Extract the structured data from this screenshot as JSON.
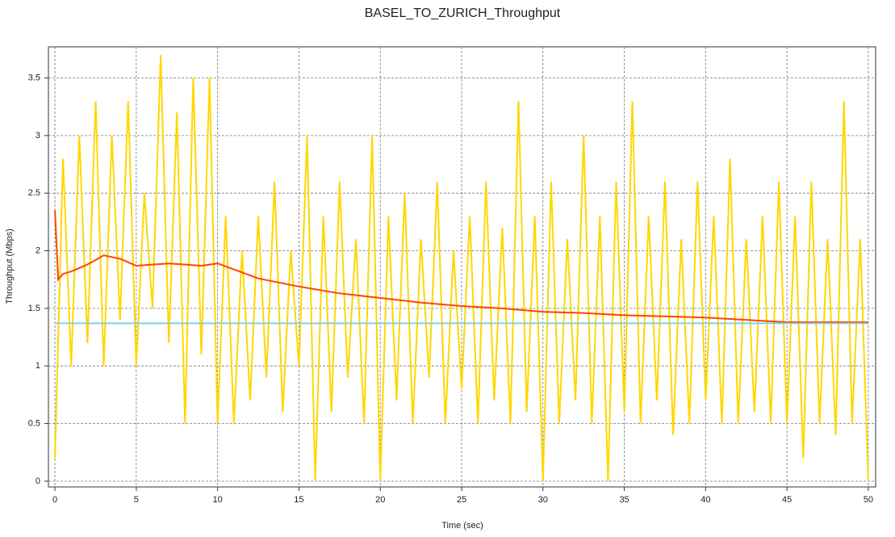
{
  "chart_data": {
    "type": "line",
    "title": "BASEL_TO_ZURICH_Throughput",
    "xlabel": "Time (sec)",
    "ylabel": "Throughput (Mbps)",
    "xlim": [
      -0.4,
      50.45
    ],
    "ylim": [
      -0.05,
      3.77
    ],
    "xticks": [
      0,
      5,
      10,
      15,
      20,
      25,
      30,
      35,
      40,
      45,
      50
    ],
    "yticks": [
      0,
      0.5,
      1,
      1.5,
      2,
      2.5,
      3,
      3.5
    ],
    "grid": true,
    "series": [
      {
        "color": "#ffd700",
        "x": [
          0,
          0.5,
          1,
          1.5,
          2,
          2.5,
          3,
          3.5,
          4,
          4.5,
          5,
          5.5,
          6,
          6.5,
          7,
          7.5,
          8,
          8.5,
          9,
          9.5,
          10,
          10.5,
          11,
          11.5,
          12,
          12.5,
          13,
          13.5,
          14,
          14.5,
          15,
          15.5,
          16,
          16.5,
          17,
          17.5,
          18,
          18.5,
          19,
          19.5,
          20,
          20.5,
          21,
          21.5,
          22,
          22.5,
          23,
          23.5,
          24,
          24.5,
          25,
          25.5,
          26,
          26.5,
          27,
          27.5,
          28,
          28.5,
          29,
          29.5,
          30,
          30.5,
          31,
          31.5,
          32,
          32.5,
          33,
          33.5,
          34,
          34.5,
          35,
          35.5,
          36,
          36.5,
          37,
          37.5,
          38,
          38.5,
          39,
          39.5,
          40,
          40.5,
          41,
          41.5,
          42,
          42.5,
          43,
          43.5,
          44,
          44.5,
          45,
          45.5,
          46,
          46.5,
          47,
          47.5,
          48,
          48.5,
          49,
          49.5,
          50
        ],
        "values": [
          0.2,
          2.8,
          1.0,
          3.0,
          1.2,
          3.3,
          1.0,
          3.0,
          1.4,
          3.3,
          1.0,
          2.5,
          1.5,
          3.7,
          1.2,
          3.2,
          0.5,
          3.5,
          1.1,
          3.5,
          0.5,
          2.3,
          0.5,
          2.0,
          0.7,
          2.3,
          0.9,
          2.6,
          0.6,
          2.0,
          1.0,
          3.0,
          0.0,
          2.3,
          0.6,
          2.6,
          0.9,
          2.1,
          0.5,
          3.0,
          0.0,
          2.3,
          0.7,
          2.5,
          0.5,
          2.1,
          0.9,
          2.6,
          0.5,
          2.0,
          0.8,
          2.3,
          0.5,
          2.6,
          0.7,
          2.2,
          0.5,
          3.3,
          0.6,
          2.3,
          0.0,
          2.6,
          0.5,
          2.1,
          0.7,
          3.0,
          0.5,
          2.3,
          0.0,
          2.6,
          0.6,
          3.3,
          0.5,
          2.3,
          0.7,
          2.6,
          0.4,
          2.1,
          0.5,
          2.6,
          0.7,
          2.3,
          0.5,
          2.8,
          0.5,
          2.1,
          0.6,
          2.3,
          0.5,
          2.6,
          0.5,
          2.3,
          0.2,
          2.6,
          0.5,
          2.1,
          0.4,
          3.3,
          0.5,
          2.1,
          0.0
        ]
      },
      {
        "color": "#ff4500",
        "x": [
          0,
          0.2,
          0.5,
          1,
          2,
          3,
          4,
          5,
          6,
          7,
          8,
          9,
          10,
          12.5,
          15,
          17.5,
          20,
          22.5,
          25,
          27.5,
          30,
          32.5,
          35,
          37.5,
          40,
          42.5,
          45,
          47.5,
          50
        ],
        "values": [
          2.35,
          1.75,
          1.8,
          1.82,
          1.88,
          1.96,
          1.93,
          1.87,
          1.88,
          1.89,
          1.88,
          1.87,
          1.89,
          1.76,
          1.69,
          1.63,
          1.59,
          1.55,
          1.52,
          1.5,
          1.47,
          1.46,
          1.44,
          1.43,
          1.42,
          1.4,
          1.38,
          1.38,
          1.38
        ]
      },
      {
        "color": "#87ceeb",
        "x": [
          0,
          50
        ],
        "values": [
          1.37,
          1.37
        ]
      }
    ]
  }
}
